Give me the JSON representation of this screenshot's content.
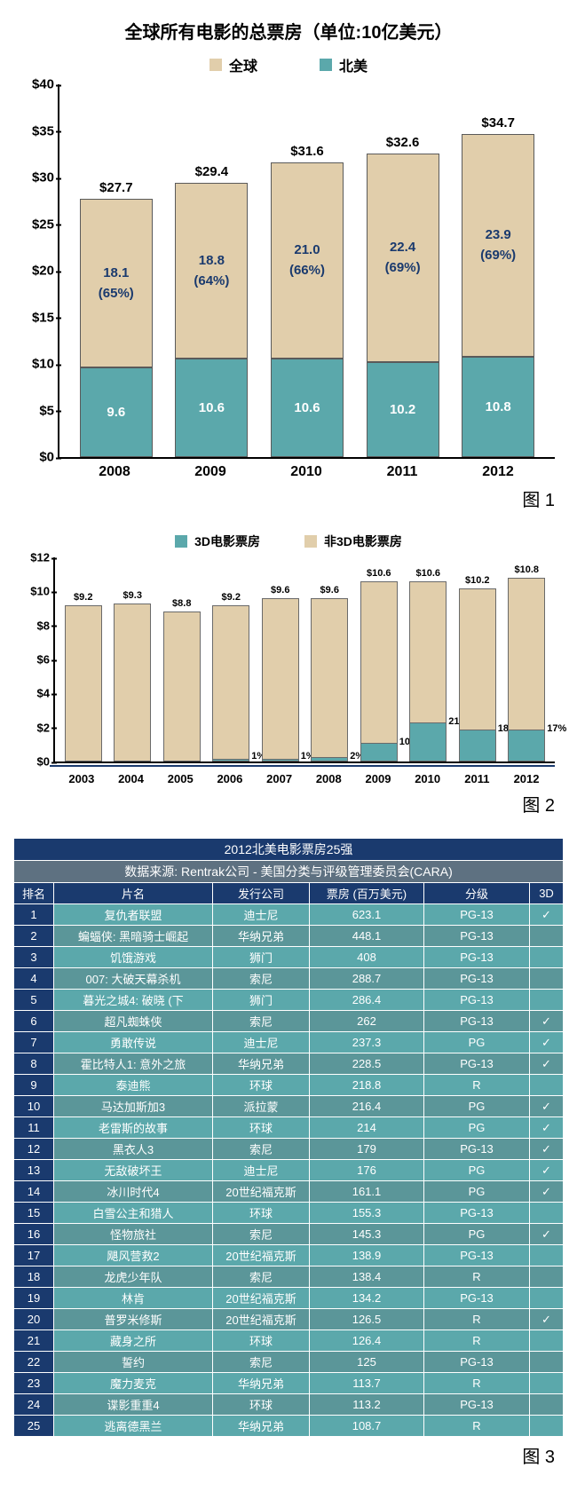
{
  "colors": {
    "tan": "#e1ceab",
    "teal": "#5ba8ab",
    "teal_dark": "#3f8c8f",
    "navy": "#1a3a6e",
    "header_gray": "#5e7181",
    "row_dark": "#5b9699"
  },
  "chart1": {
    "title": "全球所有电影的总票房（单位:10亿美元）",
    "legend": [
      {
        "label": "全球",
        "color": "#e1ceab"
      },
      {
        "label": "北美",
        "color": "#5ba8ab"
      }
    ],
    "ymax": 40,
    "yticks": [
      "$0",
      "$5",
      "$10",
      "$15",
      "$20",
      "$25",
      "$30",
      "$35",
      "$40"
    ],
    "years": [
      "2008",
      "2009",
      "2010",
      "2011",
      "2012"
    ],
    "totals": [
      "$27.7",
      "$29.4",
      "$31.6",
      "$32.6",
      "$34.7"
    ],
    "upper_values": [
      "18.1",
      "18.8",
      "21.0",
      "22.4",
      "23.9"
    ],
    "upper_pct": [
      "(65%)",
      "(64%)",
      "(66%)",
      "(69%)",
      "(69%)"
    ],
    "lower_values": [
      "9.6",
      "10.6",
      "10.6",
      "10.2",
      "10.8"
    ],
    "upper_num": [
      18.1,
      18.8,
      21.0,
      22.4,
      23.9
    ],
    "lower_num": [
      9.6,
      10.6,
      10.6,
      10.2,
      10.8
    ],
    "fig_label": "图 1"
  },
  "chart2": {
    "legend": [
      {
        "label": "3D电影票房",
        "color": "#5ba8ab"
      },
      {
        "label": "非3D电影票房",
        "color": "#e1ceab"
      }
    ],
    "ymax": 12,
    "yticks": [
      "$0",
      "$2",
      "$4",
      "$6",
      "$8",
      "$10",
      "$12"
    ],
    "years": [
      "2003",
      "2004",
      "2005",
      "2006",
      "2007",
      "2008",
      "2009",
      "2010",
      "2011",
      "2012"
    ],
    "totals": [
      "$9.2",
      "$9.3",
      "$8.8",
      "$9.2",
      "$9.6",
      "$9.6",
      "$10.6",
      "$10.6",
      "$10.2",
      "$10.8"
    ],
    "total_num": [
      9.2,
      9.3,
      8.8,
      9.2,
      9.6,
      9.6,
      10.6,
      10.6,
      10.2,
      10.8
    ],
    "threeD_pct_label": [
      "",
      "",
      "",
      "1%",
      "1%",
      "2%",
      "10%",
      "21%",
      "18%",
      "17%"
    ],
    "threeD_num": [
      0,
      0,
      0,
      0.092,
      0.096,
      0.192,
      1.06,
      2.226,
      1.836,
      1.836
    ],
    "fig_label": "图 2"
  },
  "table": {
    "title": "2012北美电影票房25强",
    "subtitle": "数据来源: Rentrak公司 - 美国分类与评级管理委员会(CARA)",
    "columns": [
      "排名",
      "片名",
      "发行公司",
      "票房 (百万美元)",
      "分级",
      "3D"
    ],
    "rows": [
      [
        "1",
        "复仇者联盟",
        "迪士尼",
        "623.1",
        "PG-13",
        "✓"
      ],
      [
        "2",
        "蝙蝠侠: 黑暗骑士崛起",
        "华纳兄弟",
        "448.1",
        "PG-13",
        ""
      ],
      [
        "3",
        "饥饿游戏",
        "狮门",
        "408",
        "PG-13",
        ""
      ],
      [
        "4",
        "007: 大破天幕杀机",
        "索尼",
        "288.7",
        "PG-13",
        ""
      ],
      [
        "5",
        "暮光之城4: 破晓 (下",
        "狮门",
        "286.4",
        "PG-13",
        ""
      ],
      [
        "6",
        "超凡蜘蛛侠",
        "索尼",
        "262",
        "PG-13",
        "✓"
      ],
      [
        "7",
        "勇敢传说",
        "迪士尼",
        "237.3",
        "PG",
        "✓"
      ],
      [
        "8",
        "霍比特人1: 意外之旅",
        "华纳兄弟",
        "228.5",
        "PG-13",
        "✓"
      ],
      [
        "9",
        "泰迪熊",
        "环球",
        "218.8",
        "R",
        ""
      ],
      [
        "10",
        "马达加斯加3",
        "派拉蒙",
        "216.4",
        "PG",
        "✓"
      ],
      [
        "11",
        "老雷斯的故事",
        "环球",
        "214",
        "PG",
        "✓"
      ],
      [
        "12",
        "黑衣人3",
        "索尼",
        "179",
        "PG-13",
        "✓"
      ],
      [
        "13",
        "无敌破坏王",
        "迪士尼",
        "176",
        "PG",
        "✓"
      ],
      [
        "14",
        "冰川时代4",
        "20世纪福克斯",
        "161.1",
        "PG",
        "✓"
      ],
      [
        "15",
        "白雪公主和猎人",
        "环球",
        "155.3",
        "PG-13",
        ""
      ],
      [
        "16",
        "怪物旅社",
        "索尼",
        "145.3",
        "PG",
        "✓"
      ],
      [
        "17",
        "飓风营救2",
        "20世纪福克斯",
        "138.9",
        "PG-13",
        ""
      ],
      [
        "18",
        "龙虎少年队",
        "索尼",
        "138.4",
        "R",
        ""
      ],
      [
        "19",
        "林肯",
        "20世纪福克斯",
        "134.2",
        "PG-13",
        ""
      ],
      [
        "20",
        "普罗米修斯",
        "20世纪福克斯",
        "126.5",
        "R",
        "✓"
      ],
      [
        "21",
        "藏身之所",
        "环球",
        "126.4",
        "R",
        ""
      ],
      [
        "22",
        "誓约",
        "索尼",
        "125",
        "PG-13",
        ""
      ],
      [
        "23",
        "魔力麦克",
        "华纳兄弟",
        "113.7",
        "R",
        ""
      ],
      [
        "24",
        "谍影重重4",
        "环球",
        "113.2",
        "PG-13",
        ""
      ],
      [
        "25",
        "逃离德黑兰",
        "华纳兄弟",
        "108.7",
        "R",
        ""
      ]
    ],
    "fig_label": "图 3"
  }
}
